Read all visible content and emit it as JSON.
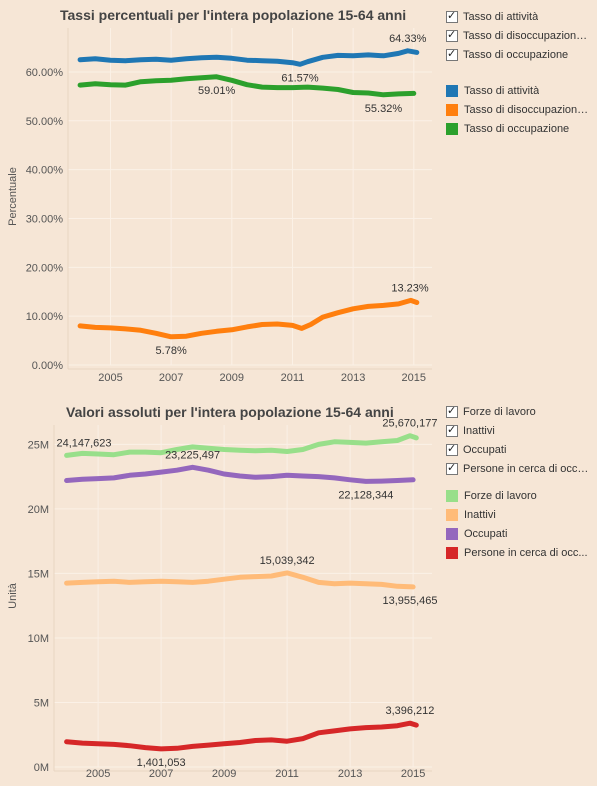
{
  "chart_data": [
    {
      "type": "line",
      "title": "Tassi percentuali per l'intera popolazione 15-64 anni",
      "ylabel": "Percentuale",
      "xlabel": "",
      "ylim": [
        0,
        69
      ],
      "xlim": [
        2003.6,
        2015.6
      ],
      "yticks": [
        0,
        10,
        20,
        30,
        40,
        50,
        60
      ],
      "ytick_labels": [
        "0.00%",
        "10.00%",
        "20.00%",
        "30.00%",
        "40.00%",
        "50.00%",
        "60.00%"
      ],
      "xticks": [
        2005,
        2007,
        2009,
        2011,
        2013,
        2015
      ],
      "grid": true,
      "legend_position": "right",
      "series": [
        {
          "name": "Tasso di attività",
          "color": "#1f77b4",
          "x": [
            2004.0,
            2004.5,
            2005.0,
            2005.5,
            2006.0,
            2006.5,
            2007.0,
            2007.5,
            2008.0,
            2008.5,
            2009.0,
            2009.5,
            2010.0,
            2010.5,
            2011.0,
            2011.25,
            2011.5,
            2012.0,
            2012.5,
            2013.0,
            2013.5,
            2014.0,
            2014.5,
            2014.8,
            2015.1
          ],
          "y": [
            62.5,
            62.7,
            62.4,
            62.3,
            62.5,
            62.6,
            62.4,
            62.7,
            62.9,
            63.0,
            62.8,
            62.4,
            62.3,
            62.2,
            61.9,
            61.57,
            62.1,
            63.0,
            63.4,
            63.3,
            63.5,
            63.3,
            63.8,
            64.33,
            64.0
          ]
        },
        {
          "name": "Tasso di disoccupazione",
          "color": "#ff7f0e",
          "x": [
            2004.0,
            2004.5,
            2005.0,
            2005.5,
            2006.0,
            2006.5,
            2007.0,
            2007.5,
            2008.0,
            2008.5,
            2009.0,
            2009.5,
            2010.0,
            2010.5,
            2011.0,
            2011.3,
            2011.6,
            2012.0,
            2012.5,
            2013.0,
            2013.5,
            2014.0,
            2014.5,
            2014.9,
            2015.1
          ],
          "y": [
            8.0,
            7.7,
            7.6,
            7.4,
            7.1,
            6.5,
            5.78,
            5.9,
            6.5,
            6.9,
            7.2,
            7.8,
            8.3,
            8.4,
            8.1,
            7.5,
            8.3,
            9.8,
            10.7,
            11.5,
            12.0,
            12.2,
            12.5,
            13.23,
            12.8
          ]
        },
        {
          "name": "Tasso di occupazione",
          "color": "#2ca02c",
          "x": [
            2004.0,
            2004.5,
            2005.0,
            2005.5,
            2006.0,
            2006.5,
            2007.0,
            2007.5,
            2008.0,
            2008.5,
            2009.0,
            2009.5,
            2010.0,
            2010.5,
            2011.0,
            2011.5,
            2012.0,
            2012.5,
            2013.0,
            2013.5,
            2014.0,
            2014.5,
            2015.0
          ],
          "y": [
            57.3,
            57.6,
            57.4,
            57.3,
            58.0,
            58.2,
            58.3,
            58.6,
            58.8,
            59.01,
            58.3,
            57.4,
            56.9,
            56.8,
            56.8,
            56.9,
            56.7,
            56.4,
            55.8,
            55.7,
            55.32,
            55.5,
            55.6
          ]
        }
      ],
      "annotations": [
        {
          "text": "64.33%",
          "x": 2014.8,
          "y": 64.33,
          "anchor": "above"
        },
        {
          "text": "61.57%",
          "x": 2011.25,
          "y": 61.57,
          "anchor": "below"
        },
        {
          "text": "59.01%",
          "x": 2008.5,
          "y": 59.01,
          "anchor": "below"
        },
        {
          "text": "55.32%",
          "x": 2014.0,
          "y": 55.32,
          "anchor": "below"
        },
        {
          "text": "13.23%",
          "x": 2014.9,
          "y": 13.23,
          "anchor": "above"
        },
        {
          "text": "5.78%",
          "x": 2007.0,
          "y": 5.78,
          "anchor": "below"
        }
      ]
    },
    {
      "type": "line",
      "title": "Valori assoluti per l'intera popolazione 15-64 anni",
      "ylabel": "Unità",
      "xlabel": "",
      "ylim": [
        0,
        26500000
      ],
      "xlim": [
        2003.6,
        2015.6
      ],
      "yticks": [
        0,
        5000000,
        10000000,
        15000000,
        20000000,
        25000000
      ],
      "ytick_labels": [
        "0M",
        "5M",
        "10M",
        "15M",
        "20M",
        "25M"
      ],
      "xticks": [
        2005,
        2007,
        2009,
        2011,
        2013,
        2015
      ],
      "grid": true,
      "legend_position": "right",
      "series": [
        {
          "name": "Forze di lavoro",
          "color": "#98df8a",
          "x": [
            2004.0,
            2004.5,
            2005.0,
            2005.5,
            2006.0,
            2006.5,
            2007.0,
            2007.5,
            2008.0,
            2008.5,
            2009.0,
            2009.5,
            2010.0,
            2010.5,
            2011.0,
            2011.5,
            2012.0,
            2012.5,
            2013.0,
            2013.5,
            2014.0,
            2014.5,
            2014.9,
            2015.1
          ],
          "y": [
            24147623,
            24300000,
            24250000,
            24200000,
            24400000,
            24400000,
            24350000,
            24600000,
            24800000,
            24700000,
            24600000,
            24550000,
            24500000,
            24550000,
            24450000,
            24600000,
            25000000,
            25200000,
            25150000,
            25100000,
            25200000,
            25300000,
            25670177,
            25500000
          ]
        },
        {
          "name": "Inattivi",
          "color": "#ffbb78",
          "x": [
            2004.0,
            2004.5,
            2005.0,
            2005.5,
            2006.0,
            2006.5,
            2007.0,
            2007.5,
            2008.0,
            2008.5,
            2009.0,
            2009.5,
            2010.0,
            2010.5,
            2011.0,
            2011.5,
            2012.0,
            2012.5,
            2013.0,
            2013.5,
            2014.0,
            2014.5,
            2015.0
          ],
          "y": [
            14250000,
            14300000,
            14350000,
            14400000,
            14300000,
            14350000,
            14400000,
            14350000,
            14300000,
            14400000,
            14550000,
            14700000,
            14750000,
            14800000,
            15039342,
            14700000,
            14300000,
            14200000,
            14250000,
            14200000,
            14150000,
            14000000,
            13955465
          ]
        },
        {
          "name": "Occupati",
          "color": "#9467bd",
          "x": [
            2004.0,
            2004.5,
            2005.0,
            2005.5,
            2006.0,
            2006.5,
            2007.0,
            2007.5,
            2008.0,
            2008.5,
            2009.0,
            2009.5,
            2010.0,
            2010.5,
            2011.0,
            2011.5,
            2012.0,
            2012.5,
            2013.0,
            2013.5,
            2014.0,
            2014.5,
            2015.0
          ],
          "y": [
            22200000,
            22300000,
            22350000,
            22400000,
            22600000,
            22700000,
            22850000,
            23000000,
            23225497,
            23000000,
            22700000,
            22550000,
            22450000,
            22500000,
            22600000,
            22550000,
            22500000,
            22400000,
            22250000,
            22128344,
            22150000,
            22200000,
            22250000
          ]
        },
        {
          "name": "Persone in cerca di occupazione",
          "color": "#d62728",
          "x": [
            2004.0,
            2004.5,
            2005.0,
            2005.5,
            2006.0,
            2006.5,
            2007.0,
            2007.5,
            2008.0,
            2008.5,
            2009.0,
            2009.5,
            2010.0,
            2010.5,
            2011.0,
            2011.5,
            2012.0,
            2012.5,
            2013.0,
            2013.5,
            2014.0,
            2014.5,
            2014.9,
            2015.1
          ],
          "y": [
            1950000,
            1850000,
            1800000,
            1750000,
            1650000,
            1500000,
            1401053,
            1450000,
            1600000,
            1700000,
            1800000,
            1900000,
            2050000,
            2100000,
            2000000,
            2200000,
            2650000,
            2800000,
            2950000,
            3050000,
            3100000,
            3200000,
            3396212,
            3250000
          ]
        }
      ],
      "annotations": [
        {
          "text": "24,147,623",
          "x": 2004.0,
          "y": 24147623,
          "anchor": "above"
        },
        {
          "text": "23,225,497",
          "x": 2008.0,
          "y": 23225497,
          "anchor": "above"
        },
        {
          "text": "25,670,177",
          "x": 2014.9,
          "y": 25670177,
          "anchor": "above"
        },
        {
          "text": "22,128,344",
          "x": 2013.5,
          "y": 22128344,
          "anchor": "below"
        },
        {
          "text": "15,039,342",
          "x": 2011.0,
          "y": 15039342,
          "anchor": "above"
        },
        {
          "text": "13,955,465",
          "x": 2015.0,
          "y": 13955465,
          "anchor": "below"
        },
        {
          "text": "3,396,212",
          "x": 2014.9,
          "y": 3396212,
          "anchor": "above"
        },
        {
          "text": "1,401,053",
          "x": 2007.0,
          "y": 1401053,
          "anchor": "below"
        }
      ]
    }
  ],
  "legend_top": {
    "filters": [
      "Tasso di attività",
      "Tasso di disoccupazione...",
      "Tasso di occupazione"
    ],
    "items": [
      "Tasso di attività",
      "Tasso di disoccupazione...",
      "Tasso di occupazione"
    ]
  },
  "legend_bottom": {
    "filters": [
      "Forze di lavoro",
      "Inattivi",
      "Occupati",
      "Persone in cerca di occu..."
    ],
    "items": [
      "Forze di lavoro",
      "Inattivi",
      "Occupati",
      "Persone in cerca di occ..."
    ]
  },
  "colors": {
    "background": "#f6e6d6",
    "grid": "#ffffff"
  }
}
